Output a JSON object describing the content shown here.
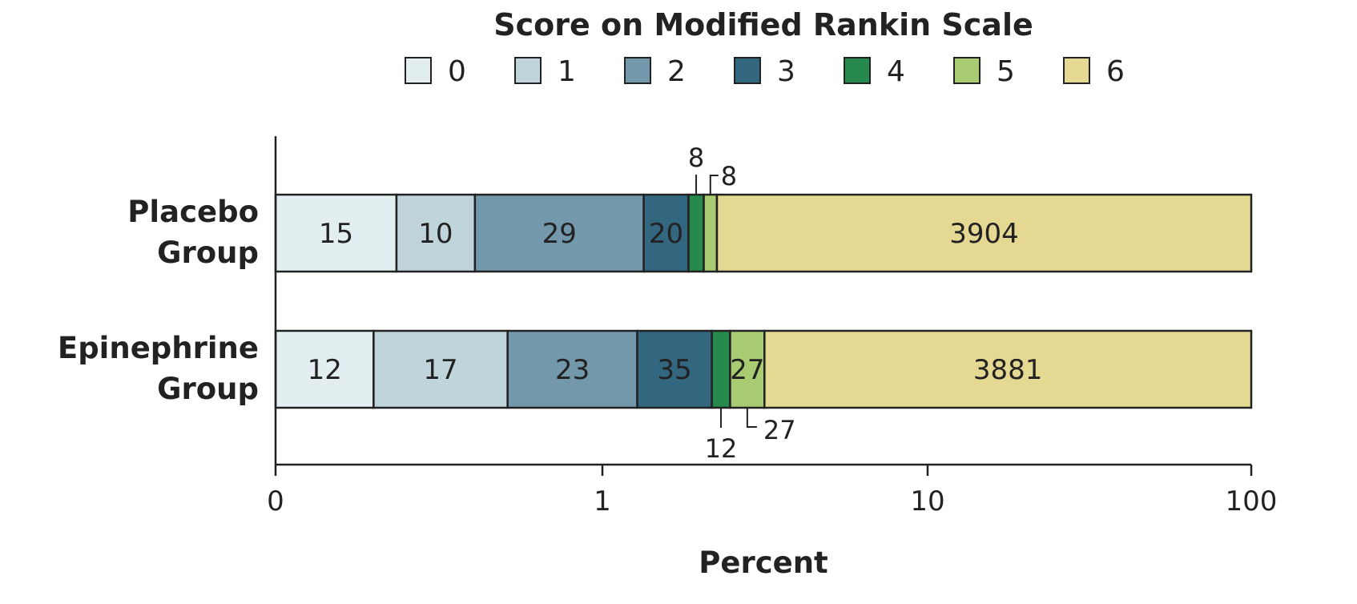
{
  "chart_data": {
    "type": "bar",
    "orientation": "horizontal",
    "stacked": true,
    "legend_title": "Score on Modified Rankin Scale",
    "legend_placement": "top",
    "xlabel": "Percent",
    "x_scale": "log",
    "x_ticks": [
      "0",
      "1",
      "10",
      "100"
    ],
    "categories": [
      "Placebo Group",
      "Epinephrine Group"
    ],
    "category_lines": [
      [
        "Placebo",
        "Group"
      ],
      [
        "Epinephrine",
        "Group"
      ]
    ],
    "series": [
      {
        "name": "0",
        "color": "#e3eef1",
        "counts": [
          15,
          12
        ],
        "cum_percent_end": [
          0.37,
          0.3
        ]
      },
      {
        "name": "1",
        "color": "#c0d4dc",
        "counts": [
          10,
          17
        ],
        "cum_percent_end": [
          0.61,
          0.71
        ]
      },
      {
        "name": "2",
        "color": "#7398ab",
        "counts": [
          29,
          23
        ],
        "cum_percent_end": [
          1.34,
          1.28
        ]
      },
      {
        "name": "3",
        "color": "#33667f",
        "counts": [
          20,
          35
        ],
        "cum_percent_end": [
          1.84,
          2.17
        ]
      },
      {
        "name": "4",
        "color": "#268a4c",
        "counts": [
          8,
          12
        ],
        "cum_percent_end": [
          2.05,
          2.47
        ]
      },
      {
        "name": "5",
        "color": "#a9cb72",
        "counts": [
          8,
          27
        ],
        "cum_percent_end": [
          2.25,
          3.15
        ]
      },
      {
        "name": "6",
        "color": "#e5d893",
        "counts": [
          3904,
          3881
        ],
        "cum_percent_end": [
          100,
          100
        ]
      }
    ],
    "callouts": [
      {
        "row": 0,
        "segment": 4,
        "label": "8",
        "position": "above"
      },
      {
        "row": 0,
        "segment": 5,
        "label": "8",
        "position": "above"
      },
      {
        "row": 1,
        "segment": 4,
        "label": "12",
        "position": "below"
      },
      {
        "row": 1,
        "segment": 5,
        "label": "27",
        "position": "below"
      }
    ]
  }
}
